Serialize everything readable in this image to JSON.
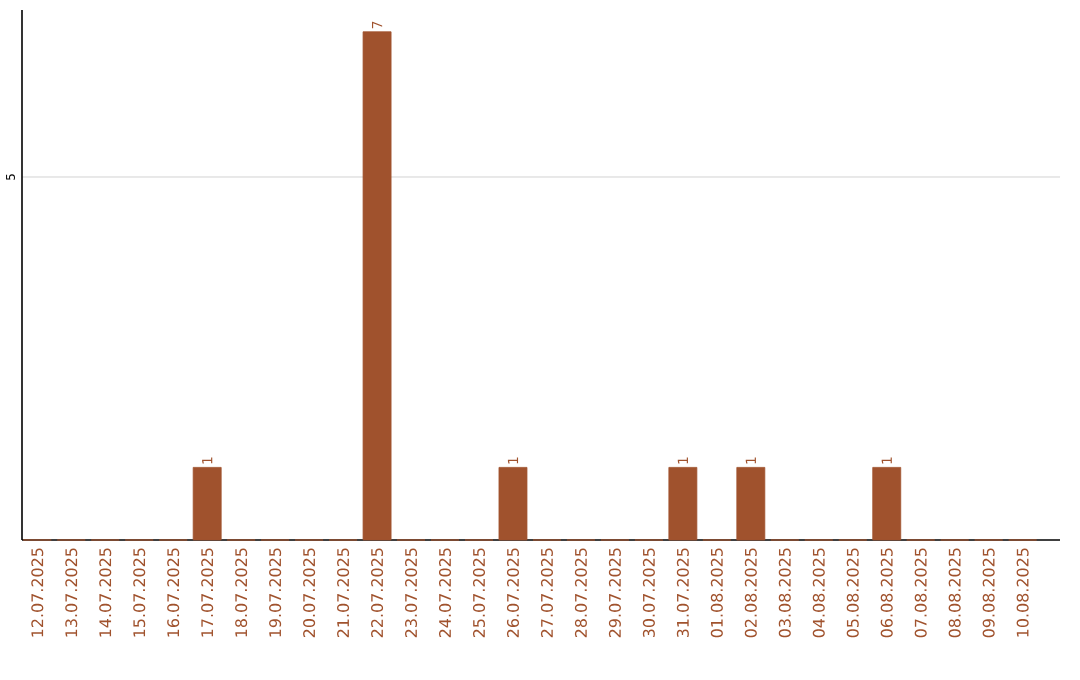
{
  "chart_data": {
    "type": "bar",
    "categories": [
      "12.07.2025",
      "13.07.2025",
      "14.07.2025",
      "15.07.2025",
      "16.07.2025",
      "17.07.2025",
      "18.07.2025",
      "19.07.2025",
      "20.07.2025",
      "21.07.2025",
      "22.07.2025",
      "23.07.2025",
      "24.07.2025",
      "25.07.2025",
      "26.07.2025",
      "27.07.2025",
      "28.07.2025",
      "29.07.2025",
      "30.07.2025",
      "31.07.2025",
      "01.08.2025",
      "02.08.2025",
      "03.08.2025",
      "04.08.2025",
      "05.08.2025",
      "06.08.2025",
      "07.08.2025",
      "08.08.2025",
      "09.08.2025",
      "10.08.2025"
    ],
    "values": [
      0,
      0,
      0,
      0,
      0,
      1,
      0,
      0,
      0,
      0,
      7,
      0,
      0,
      0,
      1,
      0,
      0,
      0,
      0,
      1,
      0,
      1,
      0,
      0,
      0,
      1,
      0,
      0,
      0,
      0
    ],
    "value_labels": [
      null,
      null,
      null,
      null,
      null,
      "1",
      null,
      null,
      null,
      null,
      "7",
      null,
      null,
      null,
      "1",
      null,
      null,
      null,
      null,
      "1",
      null,
      "1",
      null,
      null,
      null,
      "1",
      null,
      null,
      null,
      null
    ],
    "color": "#a0522d",
    "ylim": [
      0,
      7.3
    ],
    "yticks": [
      5
    ],
    "grid": "y"
  }
}
